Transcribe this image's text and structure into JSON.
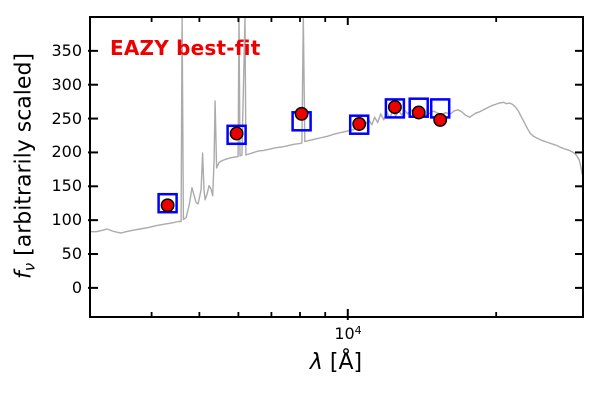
{
  "chart_data": {
    "type": "line",
    "title": "",
    "annotation": {
      "text": "EAZY best-fit",
      "color": "#ee0000"
    },
    "xlabel": {
      "symbol": "λ",
      "unit": " [Å]"
    },
    "ylabel": {
      "symbol": "f",
      "subscript": "ν",
      "rest": " [arbitrarily scaled]"
    },
    "x_scale": "log",
    "xlim": [
      3000,
      30000
    ],
    "ylim": [
      -43,
      400
    ],
    "grid": false,
    "legend": false,
    "x_major_ticks": [
      10000
    ],
    "x_major_tick_label": {
      "mantissa": "10",
      "exponent": "4"
    },
    "x_minor_ticks": [
      4000,
      5000,
      6000,
      7000,
      8000,
      9000,
      20000
    ],
    "y_ticks": [
      0,
      50,
      100,
      150,
      200,
      250,
      300,
      350
    ],
    "frame_color": "#000000",
    "series": [
      {
        "name": "eazy-best-fit-template-spectrum",
        "type": "line",
        "color": "#ababab",
        "points": [
          [
            3000,
            83
          ],
          [
            3090,
            83
          ],
          [
            3180,
            85
          ],
          [
            3250,
            87
          ],
          [
            3330,
            84
          ],
          [
            3410,
            82
          ],
          [
            3470,
            81
          ],
          [
            3550,
            83
          ],
          [
            3660,
            85
          ],
          [
            3790,
            87
          ],
          [
            3940,
            89
          ],
          [
            4090,
            92
          ],
          [
            4240,
            94
          ],
          [
            4400,
            96
          ],
          [
            4530,
            98
          ],
          [
            4590,
            98
          ],
          [
            4612,
            400
          ],
          [
            4640,
            101
          ],
          [
            4700,
            104
          ],
          [
            4770,
            123
          ],
          [
            4830,
            148
          ],
          [
            4880,
            136
          ],
          [
            4925,
            126
          ],
          [
            4970,
            124
          ],
          [
            5040,
            145
          ],
          [
            5075,
            199
          ],
          [
            5110,
            145
          ],
          [
            5135,
            130
          ],
          [
            5185,
            139
          ],
          [
            5230,
            151
          ],
          [
            5280,
            146
          ],
          [
            5320,
            136
          ],
          [
            5355,
            189
          ],
          [
            5380,
            276
          ],
          [
            5420,
            177
          ],
          [
            5480,
            185
          ],
          [
            5560,
            188
          ],
          [
            5660,
            190
          ],
          [
            5770,
            192
          ],
          [
            5880,
            193
          ],
          [
            5990,
            194
          ],
          [
            6018,
            400
          ],
          [
            6045,
            195
          ],
          [
            6100,
            196
          ],
          [
            6188,
            400
          ],
          [
            6215,
            196
          ],
          [
            6245,
            197
          ],
          [
            6390,
            199
          ],
          [
            6575,
            202
          ],
          [
            6760,
            203
          ],
          [
            6950,
            205
          ],
          [
            7150,
            207
          ],
          [
            7350,
            208
          ],
          [
            7560,
            210
          ],
          [
            7770,
            212
          ],
          [
            7990,
            213
          ],
          [
            8070,
            214
          ],
          [
            8125,
            400
          ],
          [
            8180,
            216
          ],
          [
            8375,
            218
          ],
          [
            8610,
            220
          ],
          [
            8860,
            222
          ],
          [
            9110,
            224
          ],
          [
            9370,
            227
          ],
          [
            9630,
            229
          ],
          [
            9910,
            231
          ],
          [
            10190,
            233
          ],
          [
            10480,
            236
          ],
          [
            10670,
            238
          ],
          [
            10875,
            242
          ],
          [
            11030,
            248
          ],
          [
            11185,
            241
          ],
          [
            11340,
            252
          ],
          [
            11500,
            244
          ],
          [
            11660,
            257
          ],
          [
            11830,
            248
          ],
          [
            11995,
            260
          ],
          [
            12165,
            251
          ],
          [
            12340,
            261
          ],
          [
            12510,
            254
          ],
          [
            12690,
            262
          ],
          [
            12865,
            255
          ],
          [
            13050,
            262
          ],
          [
            13230,
            257
          ],
          [
            13420,
            263
          ],
          [
            13610,
            258
          ],
          [
            13800,
            261
          ],
          [
            13995,
            256
          ],
          [
            14190,
            260
          ],
          [
            14395,
            255
          ],
          [
            14665,
            258
          ],
          [
            14940,
            261
          ],
          [
            15220,
            258
          ],
          [
            15510,
            256
          ],
          [
            15800,
            259
          ],
          [
            16100,
            256
          ],
          [
            16400,
            261
          ],
          [
            16710,
            263
          ],
          [
            17020,
            260
          ],
          [
            17340,
            255
          ],
          [
            17670,
            252
          ],
          [
            17915,
            255
          ],
          [
            18165,
            258
          ],
          [
            18510,
            260
          ],
          [
            18855,
            263
          ],
          [
            19210,
            266
          ],
          [
            19570,
            269
          ],
          [
            19940,
            271
          ],
          [
            20315,
            273
          ],
          [
            20700,
            274
          ],
          [
            20990,
            272
          ],
          [
            21280,
            273
          ],
          [
            21580,
            271
          ],
          [
            21885,
            267
          ],
          [
            22190,
            261
          ],
          [
            22505,
            252
          ],
          [
            22820,
            244
          ],
          [
            23145,
            235
          ],
          [
            23470,
            228
          ],
          [
            23800,
            224
          ],
          [
            24245,
            221
          ],
          [
            24700,
            218
          ],
          [
            25165,
            216
          ],
          [
            25635,
            214
          ],
          [
            26120,
            212
          ],
          [
            26610,
            210
          ],
          [
            27110,
            207
          ],
          [
            27615,
            205
          ],
          [
            28135,
            203
          ],
          [
            28530,
            201
          ],
          [
            28930,
            198
          ],
          [
            29200,
            194
          ],
          [
            29475,
            189
          ],
          [
            29680,
            180
          ],
          [
            29900,
            167
          ]
        ]
      },
      {
        "name": "template-photometry",
        "type": "scatter",
        "marker": "open-square",
        "color": "#0000ff",
        "points": [
          [
            4310,
            125
          ],
          [
            5950,
            226
          ],
          [
            8060,
            246
          ],
          [
            10550,
            241
          ],
          [
            12460,
            265
          ],
          [
            13930,
            266
          ],
          [
            15400,
            265
          ]
        ]
      },
      {
        "name": "observed-photometry",
        "type": "scatter",
        "marker": "filled-circle",
        "fill": "#ee0000",
        "edge": "#000000",
        "points": [
          [
            4310,
            122
          ],
          [
            5950,
            228
          ],
          [
            8060,
            257
          ],
          [
            10550,
            242
          ],
          [
            12460,
            267
          ],
          [
            13930,
            259
          ],
          [
            15400,
            248
          ]
        ]
      }
    ]
  }
}
